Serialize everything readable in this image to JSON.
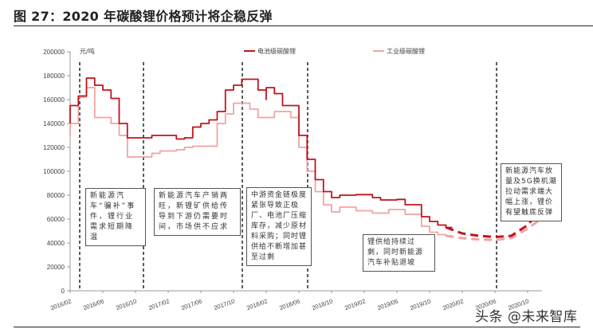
{
  "title": "图 27：2020 年碳酸锂价格预计将企稳反弹",
  "watermark": "头条 @未来智库",
  "chart_data": {
    "type": "line",
    "title": "2020 年碳酸锂价格预计将企稳反弹",
    "xlabel": "",
    "ylabel": "元/吨",
    "ylim": [
      0,
      200000
    ],
    "yticks": [
      0,
      20000,
      40000,
      60000,
      80000,
      100000,
      120000,
      140000,
      160000,
      180000,
      200000
    ],
    "xticks": [
      "2016/02",
      "2016/06",
      "2016/10",
      "2017/02",
      "2017/06",
      "2017/10",
      "2018/02",
      "2018/06",
      "2018/10",
      "2019/02",
      "2019/06",
      "2019/10",
      "2020/02",
      "2020/06",
      "2020/10"
    ],
    "grid": false,
    "legend_position": "top",
    "legend": [
      "电池级碳酸锂",
      "工业级碳酸锂"
    ],
    "series": [
      {
        "name": "电池级碳酸锂",
        "color": "#c0141c",
        "style": "solid",
        "points": [
          [
            "2016/02",
            140000
          ],
          [
            "2016/02",
            155000
          ],
          [
            "2016/03",
            163000
          ],
          [
            "2016/04",
            165000
          ],
          [
            "2016/04",
            178000
          ],
          [
            "2016/05",
            172000
          ],
          [
            "2016/06",
            168000
          ],
          [
            "2016/07",
            161000
          ],
          [
            "2016/08",
            140000
          ],
          [
            "2016/09",
            134000
          ],
          [
            "2016/09",
            128000
          ],
          [
            "2016/11",
            128000
          ],
          [
            "2016/12",
            130000
          ],
          [
            "2017/02",
            130000
          ],
          [
            "2017/03",
            127000
          ],
          [
            "2017/04",
            128000
          ],
          [
            "2017/05",
            137000
          ],
          [
            "2017/06",
            140000
          ],
          [
            "2017/07",
            143000
          ],
          [
            "2017/08",
            150000
          ],
          [
            "2017/09",
            168000
          ],
          [
            "2017/10",
            172000
          ],
          [
            "2017/11",
            177000
          ],
          [
            "2017/12",
            177000
          ],
          [
            "2018/01",
            168000
          ],
          [
            "2018/02",
            160000
          ],
          [
            "2018/02",
            170000
          ],
          [
            "2018/03",
            165000
          ],
          [
            "2018/04",
            155000
          ],
          [
            "2018/05",
            155000
          ],
          [
            "2018/06",
            130000
          ],
          [
            "2018/07",
            110000
          ],
          [
            "2018/08",
            93000
          ],
          [
            "2018/09",
            83000
          ],
          [
            "2018/10",
            78000
          ],
          [
            "2018/11",
            80000
          ],
          [
            "2019/01",
            80500
          ],
          [
            "2019/03",
            78000
          ],
          [
            "2019/04",
            76000
          ],
          [
            "2019/06",
            76500
          ],
          [
            "2019/07",
            72000
          ],
          [
            "2019/09",
            62000
          ],
          [
            "2019/10",
            58000
          ],
          [
            "2019/11",
            55000
          ],
          [
            "2019/12",
            53000
          ]
        ]
      },
      {
        "name": "工业级碳酸锂",
        "color": "#f0a3a3",
        "style": "solid",
        "points": [
          [
            "2016/02",
            130000
          ],
          [
            "2016/02",
            140000
          ],
          [
            "2016/03",
            162000
          ],
          [
            "2016/04",
            162000
          ],
          [
            "2016/04",
            170000
          ],
          [
            "2016/05",
            145000
          ],
          [
            "2016/06",
            145000
          ],
          [
            "2016/07",
            140000
          ],
          [
            "2016/08",
            130000
          ],
          [
            "2016/09",
            120000
          ],
          [
            "2016/09",
            112000
          ],
          [
            "2016/11",
            112000
          ],
          [
            "2016/12",
            115000
          ],
          [
            "2017/01",
            117000
          ],
          [
            "2017/03",
            118000
          ],
          [
            "2017/04",
            120000
          ],
          [
            "2017/05",
            121000
          ],
          [
            "2017/07",
            121000
          ],
          [
            "2017/08",
            140000
          ],
          [
            "2017/09",
            148000
          ],
          [
            "2017/10",
            157000
          ],
          [
            "2017/11",
            157000
          ],
          [
            "2017/12",
            152000
          ],
          [
            "2018/01",
            145000
          ],
          [
            "2018/02",
            145000
          ],
          [
            "2018/03",
            150000
          ],
          [
            "2018/04",
            150000
          ],
          [
            "2018/05",
            145000
          ],
          [
            "2018/06",
            120000
          ],
          [
            "2018/07",
            100000
          ],
          [
            "2018/08",
            83000
          ],
          [
            "2018/09",
            72000
          ],
          [
            "2018/10",
            66000
          ],
          [
            "2018/11",
            70000
          ],
          [
            "2019/01",
            67000
          ],
          [
            "2019/03",
            65000
          ],
          [
            "2019/05",
            68000
          ],
          [
            "2019/07",
            64000
          ],
          [
            "2019/09",
            54000
          ],
          [
            "2019/10",
            49000
          ],
          [
            "2019/11",
            47000
          ],
          [
            "2019/12",
            46000
          ]
        ]
      },
      {
        "name": "电池级碳酸锂(预测)",
        "color": "#c0141c",
        "style": "dashed",
        "points": [
          [
            "2019/12",
            53000
          ],
          [
            "2020/02",
            48000
          ],
          [
            "2020/04",
            46000
          ],
          [
            "2020/06",
            45000
          ],
          [
            "2020/08",
            46000
          ],
          [
            "2020/10",
            55000
          ],
          [
            "2020/11",
            63000
          ]
        ]
      },
      {
        "name": "工业级碳酸锂(预测)",
        "color": "#f0a3a3",
        "style": "dashed",
        "points": [
          [
            "2019/12",
            46000
          ],
          [
            "2020/02",
            44000
          ],
          [
            "2020/04",
            43000
          ],
          [
            "2020/06",
            42500
          ],
          [
            "2020/08",
            44000
          ],
          [
            "2020/10",
            52000
          ],
          [
            "2020/12",
            62000
          ]
        ]
      }
    ],
    "phase_dividers": [
      "2016/04",
      "2016/11",
      "2017/11",
      "2018/07",
      "2020/06"
    ],
    "annotations": [
      "新能源汽车“骗补”事件，锂行业需求短期降温",
      "新能源汽车产销两旺，新锂矿供给传导到下游仍需要时间，市场供不应求",
      "中游资金链极度紧张导致正极厂、电池厂压缩库存，减少原材料采购；同时锂供给不断增加甚至过剩",
      "锂供给持续过剩，同时新能源汽车补贴退坡",
      "新能源汽车放量及5G换机潮拉动需求端大幅上涨，锂价有望触底反弹"
    ]
  }
}
